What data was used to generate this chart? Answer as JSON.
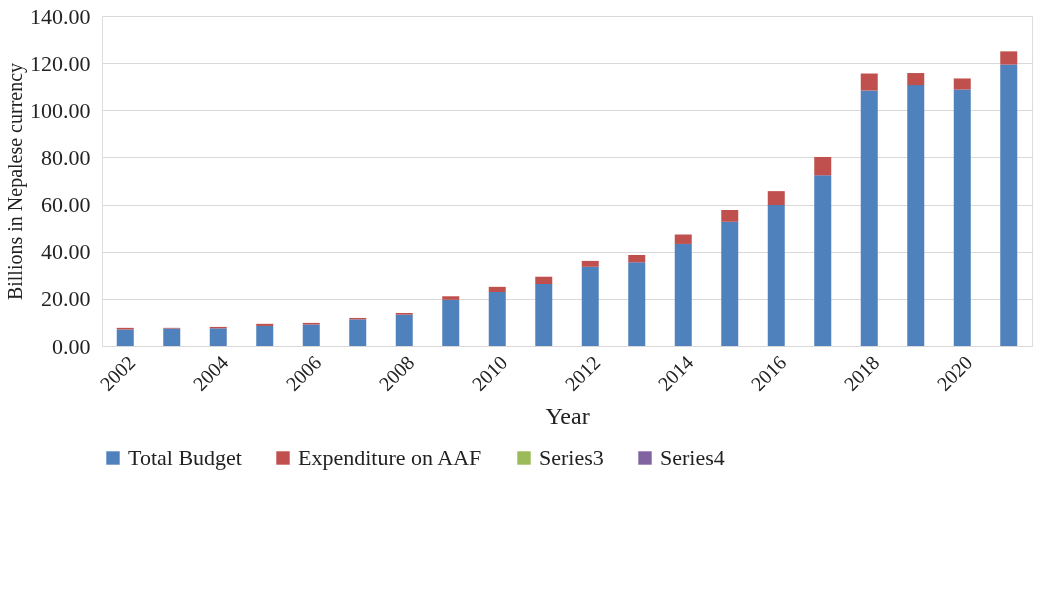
{
  "chart_data": {
    "type": "bar",
    "stacked": true,
    "xlabel": "Year",
    "ylabel": "Billions in Nepalese currency",
    "categories": [
      "2002",
      null,
      "2004",
      null,
      "2006",
      null,
      "2008",
      null,
      "2010",
      null,
      "2012",
      null,
      "2014",
      null,
      "2016",
      null,
      "2018",
      null,
      "2020",
      null
    ],
    "series": [
      {
        "name": "Total Budget",
        "color": "#4f81bd",
        "values": [
          7.0,
          7.4,
          7.5,
          8.5,
          9.1,
          11.3,
          13.3,
          19.6,
          22.9,
          26.3,
          33.6,
          35.5,
          43.3,
          52.7,
          59.8,
          72.4,
          108.4,
          110.7,
          108.8,
          119.4
        ]
      },
      {
        "name": "Expenditure on AAF",
        "color": "#c0504d",
        "values": [
          0.7,
          0.3,
          0.6,
          0.9,
          0.7,
          0.6,
          0.7,
          1.5,
          2.2,
          3.1,
          2.5,
          3.1,
          4.0,
          5.0,
          5.9,
          7.8,
          7.2,
          5.1,
          4.7,
          5.6
        ]
      },
      {
        "name": "Series3",
        "color": "#9bbb59",
        "values": [
          null,
          null,
          null,
          null,
          null,
          null,
          null,
          null,
          null,
          null,
          null,
          null,
          null,
          null,
          null,
          null,
          null,
          null,
          null,
          null
        ]
      },
      {
        "name": "Series4",
        "color": "#8064a2",
        "values": [
          null,
          null,
          null,
          null,
          null,
          null,
          null,
          null,
          null,
          null,
          null,
          null,
          null,
          null,
          null,
          null,
          null,
          null,
          null,
          null
        ]
      }
    ],
    "ylim": [
      0,
      140
    ],
    "yticks": [
      {
        "value": 0,
        "label": "0.00"
      },
      {
        "value": 20,
        "label": "20.00"
      },
      {
        "value": 40,
        "label": "40.00"
      },
      {
        "value": 60,
        "label": "60.00"
      },
      {
        "value": 80,
        "label": "80.00"
      },
      {
        "value": 100,
        "label": "100.00"
      },
      {
        "value": 120,
        "label": "120.00"
      },
      {
        "value": 140,
        "label": "140.00"
      }
    ],
    "grid": "y",
    "legend": "bottom"
  }
}
